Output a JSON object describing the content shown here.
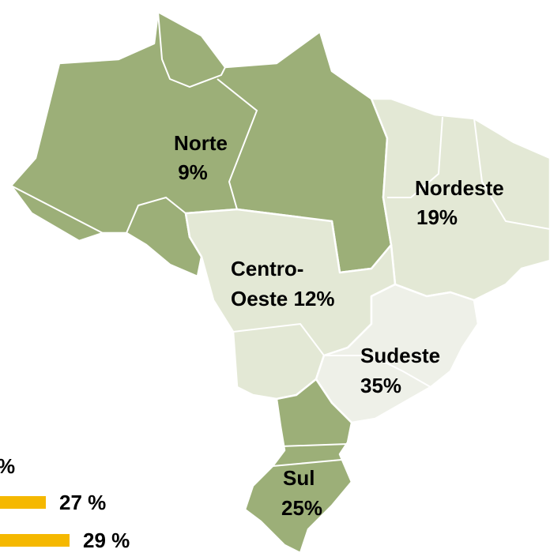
{
  "regions": [
    {
      "lines": [
        "Norte",
        "9%"
      ]
    },
    {
      "lines": [
        "Nordeste",
        "19%"
      ]
    },
    {
      "lines": [
        "Centro-",
        "Oeste 12%"
      ]
    },
    {
      "lines": [
        "Sudeste",
        "35%"
      ]
    },
    {
      "lines": [
        "Sul",
        "25%"
      ]
    }
  ],
  "bars": {
    "fragment": "%",
    "values": [
      27,
      29
    ],
    "value_labels": [
      "27 %",
      "29 %"
    ]
  }
}
